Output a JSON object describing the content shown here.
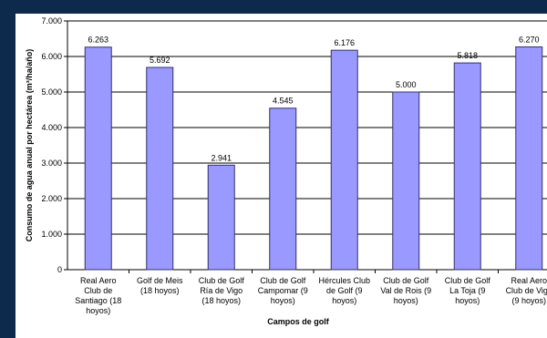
{
  "chart_data": {
    "type": "bar",
    "title": "",
    "xlabel": "Campos de golf",
    "ylabel": "Consumo de agua anual por hectárea (m³/ha/año)",
    "ylim": [
      0,
      7000
    ],
    "yticks": [
      0,
      1000,
      2000,
      3000,
      4000,
      5000,
      6000,
      7000
    ],
    "ytick_labels": [
      "0",
      "1.000",
      "2.000",
      "3.000",
      "4.000",
      "5.000",
      "6.000",
      "7.000"
    ],
    "categories": [
      [
        "Real Aero",
        "Club de",
        "Santiago (18",
        "hoyos)"
      ],
      [
        "Golf de Meis",
        "(18 hoyos)"
      ],
      [
        "Club de Golf",
        "Ría de Vigo",
        "(18 hoyos)"
      ],
      [
        "Club de Golf",
        "Campomar (9",
        "hoyos)"
      ],
      [
        "Hércules Club",
        "de Golf (9",
        "hoyos)"
      ],
      [
        "Club de Golf",
        "Val de Rois (9",
        "hoyos)"
      ],
      [
        "Club de Golf",
        "La Toja (9",
        "hoyos)"
      ],
      [
        "Real Aero",
        "Club de Vigo",
        "(9 hoyos)"
      ]
    ],
    "values": [
      6263,
      5692,
      2941,
      4545,
      6176,
      5000,
      5818,
      6270
    ],
    "value_labels": [
      "6.263",
      "5.692",
      "2.941",
      "4.545",
      "6.176",
      "5.000",
      "5.818",
      "6.270"
    ],
    "bar_color": "#9999ff",
    "grid": true,
    "legend": "none"
  }
}
